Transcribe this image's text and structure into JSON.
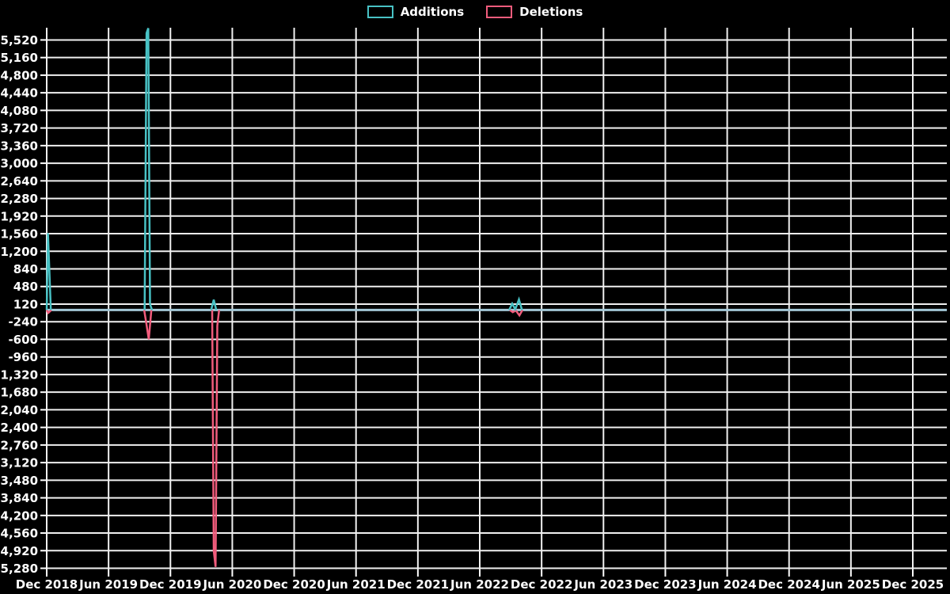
{
  "page": {
    "background": "#000000",
    "text_color": "#ffffff"
  },
  "chart_data": {
    "type": "line",
    "title": "",
    "legend_position": "top-center",
    "legend": [
      {
        "label": "Additions",
        "color": "#48c2c5"
      },
      {
        "label": "Deletions",
        "color": "#f15c7c"
      }
    ],
    "x_axis": {
      "tick_labels": [
        "Dec 2018",
        "Jun 2019",
        "Dec 2019",
        "Jun 2020",
        "Dec 2020",
        "Jun 2021",
        "Dec 2021",
        "Jun 2022",
        "Dec 2022",
        "Jun 2023",
        "Dec 2023",
        "Jun 2024",
        "Dec 2024",
        "Jun 2025",
        "Dec 2025"
      ],
      "month_step": 6,
      "last_tick_month": 84,
      "plot_months_max": 87.3
    },
    "y_axis": {
      "tick_labels": [
        "5,520",
        "5,160",
        "4,800",
        "4,440",
        "4,080",
        "3,720",
        "3,360",
        "3,000",
        "2,640",
        "2,280",
        "1,920",
        "1,560",
        "1,200",
        "840",
        "480",
        "120",
        "-240",
        "-600",
        "-960",
        "-1,320",
        "-1,680",
        "-2,040",
        "-2,400",
        "-2,760",
        "-3,120",
        "-3,480",
        "-3,840",
        "-4,200",
        "-4,560",
        "-4,920",
        "-5,280"
      ],
      "tick_step": 360,
      "range": {
        "min": -5320,
        "max": 5770
      }
    },
    "grid": {
      "show": true,
      "color": "#f0f0f0"
    },
    "baseline": {
      "value": 0,
      "color": "#a3c7d6"
    },
    "series": [
      {
        "name": "Additions",
        "color": "#48c2c5",
        "default_value": 0,
        "segments": [
          [
            [
              0,
              0
            ],
            [
              0.12,
              1570
            ],
            [
              0.4,
              0
            ]
          ],
          [
            [
              9.5,
              0
            ],
            [
              9.68,
              5660
            ],
            [
              9.85,
              5760
            ],
            [
              10.02,
              120
            ],
            [
              10.22,
              0
            ]
          ],
          [
            [
              15.95,
              0
            ],
            [
              16.2,
              210
            ],
            [
              16.45,
              0
            ]
          ],
          [
            [
              44.85,
              0
            ],
            [
              45.15,
              130
            ],
            [
              45.45,
              15
            ],
            [
              45.8,
              215
            ],
            [
              46.1,
              0
            ]
          ]
        ]
      },
      {
        "name": "Deletions",
        "color": "#f15c7c",
        "default_value": 0,
        "segments": [
          [
            [
              0,
              0
            ],
            [
              0.15,
              -60
            ],
            [
              0.45,
              0
            ]
          ],
          [
            [
              9.45,
              0
            ],
            [
              9.68,
              -300
            ],
            [
              9.9,
              -600
            ],
            [
              10.15,
              0
            ]
          ],
          [
            [
              16.05,
              0
            ],
            [
              16.2,
              -4920
            ],
            [
              16.38,
              -5250
            ],
            [
              16.55,
              -320
            ],
            [
              16.72,
              0
            ]
          ],
          [
            [
              44.9,
              0
            ],
            [
              45.2,
              -45
            ],
            [
              45.5,
              -10
            ],
            [
              45.85,
              -110
            ],
            [
              46.15,
              0
            ]
          ]
        ]
      }
    ]
  }
}
